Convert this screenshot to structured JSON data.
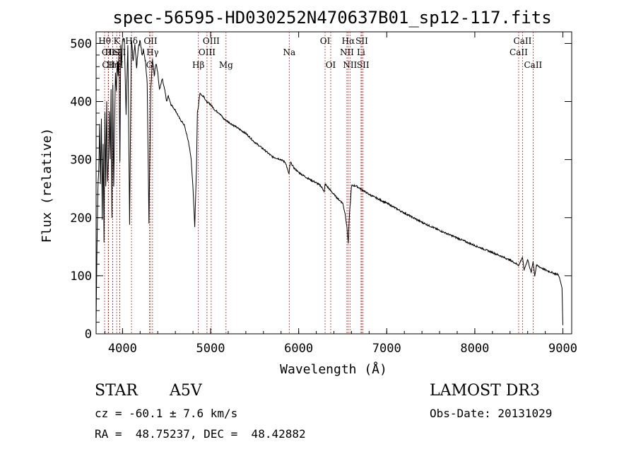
{
  "chart_data": {
    "type": "line",
    "title": "spec-56595-HD030252N470637B01_sp12-117.fits",
    "xlabel": "Wavelength (Å)",
    "ylabel": "Flux (relative)",
    "xlim": [
      3700,
      9100
    ],
    "ylim": [
      0,
      520
    ],
    "xticks": [
      4000,
      5000,
      6000,
      7000,
      8000,
      9000
    ],
    "yticks": [
      0,
      100,
      200,
      300,
      400,
      500
    ],
    "series": [
      {
        "name": "spectrum",
        "x": [
          3700,
          3710,
          3720,
          3730,
          3740,
          3750,
          3760,
          3770,
          3780,
          3790,
          3800,
          3810,
          3820,
          3830,
          3840,
          3850,
          3860,
          3870,
          3880,
          3890,
          3900,
          3910,
          3920,
          3930,
          3940,
          3950,
          3960,
          3970,
          3980,
          3990,
          4000,
          4020,
          4040,
          4060,
          4080,
          4100,
          4120,
          4140,
          4160,
          4180,
          4200,
          4220,
          4240,
          4260,
          4280,
          4300,
          4320,
          4340,
          4360,
          4380,
          4400,
          4420,
          4450,
          4480,
          4500,
          4520,
          4550,
          4600,
          4650,
          4700,
          4750,
          4780,
          4800,
          4820,
          4840,
          4850,
          4860,
          4870,
          4880,
          4900,
          4920,
          4950,
          5000,
          5050,
          5100,
          5150,
          5200,
          5300,
          5400,
          5500,
          5600,
          5700,
          5800,
          5850,
          5890,
          5900,
          5910,
          5950,
          6000,
          6100,
          6200,
          6250,
          6280,
          6290,
          6300,
          6400,
          6450,
          6500,
          6530,
          6550,
          6563,
          6575,
          6600,
          6650,
          6700,
          6750,
          6800,
          7000,
          7200,
          7400,
          7600,
          7800,
          8000,
          8200,
          8400,
          8500,
          8540,
          8560,
          8600,
          8640,
          8662,
          8680,
          8700,
          8800,
          8900,
          8950,
          8990,
          9000
        ],
        "values": [
          20,
          150,
          250,
          280,
          360,
          260,
          370,
          200,
          330,
          160,
          380,
          250,
          400,
          260,
          300,
          380,
          300,
          420,
          200,
          430,
          250,
          360,
          450,
          420,
          470,
          440,
          480,
          300,
          500,
          460,
          510,
          505,
          380,
          500,
          190,
          510,
          470,
          500,
          460,
          495,
          505,
          480,
          490,
          470,
          430,
          190,
          420,
          470,
          445,
          465,
          450,
          420,
          440,
          420,
          400,
          410,
          395,
          385,
          370,
          360,
          330,
          300,
          250,
          185,
          290,
          380,
          390,
          405,
          415,
          410,
          410,
          400,
          395,
          385,
          380,
          370,
          365,
          355,
          345,
          330,
          318,
          305,
          300,
          295,
          275,
          290,
          295,
          285,
          278,
          268,
          260,
          255,
          248,
          244,
          258,
          240,
          232,
          225,
          205,
          180,
          155,
          200,
          255,
          255,
          250,
          245,
          240,
          225,
          208,
          192,
          178,
          165,
          152,
          140,
          127,
          118,
          132,
          110,
          128,
          105,
          125,
          100,
          118,
          110,
          104,
          102,
          80,
          15
        ]
      }
    ],
    "lines": [
      {
        "label": "Hθ",
        "x": 3797,
        "row": 1
      },
      {
        "label": "CII",
        "x": 3838,
        "row": 2
      },
      {
        "label": "CII",
        "x": 3842,
        "row": 3
      },
      {
        "label": "Hη",
        "x": 3889,
        "row": 3
      },
      {
        "label": "HeI",
        "x": 3889,
        "row": 2
      },
      {
        "label": "K",
        "x": 3934,
        "row": 1
      },
      {
        "label": "SII",
        "x": 3969,
        "row": 2
      },
      {
        "label": "H",
        "x": 3969,
        "row": 3
      },
      {
        "label": "Hδ",
        "x": 4102,
        "row": 1
      },
      {
        "label": "OII",
        "x": 4318,
        "row": 1
      },
      {
        "label": "Hγ",
        "x": 4341,
        "row": 2
      },
      {
        "label": "G",
        "x": 4305,
        "row": 3
      },
      {
        "label": "Hβ",
        "x": 4861,
        "row": 3
      },
      {
        "label": "OIII",
        "x": 5007,
        "row": 1
      },
      {
        "label": "OIII",
        "x": 4959,
        "row": 2
      },
      {
        "label": "Mg",
        "x": 5175,
        "row": 3
      },
      {
        "label": "Na",
        "x": 5893,
        "row": 2
      },
      {
        "label": "OI",
        "x": 6300,
        "row": 1
      },
      {
        "label": "OI",
        "x": 6364,
        "row": 3
      },
      {
        "label": "Hα",
        "x": 6563,
        "row": 1
      },
      {
        "label": "NII",
        "x": 6548,
        "row": 2
      },
      {
        "label": "NII",
        "x": 6583,
        "row": 3
      },
      {
        "label": "Li",
        "x": 6708,
        "row": 2
      },
      {
        "label": "SII",
        "x": 6717,
        "row": 1
      },
      {
        "label": "SII",
        "x": 6731,
        "row": 3
      },
      {
        "label": "CaII",
        "x": 8542,
        "row": 1
      },
      {
        "label": "CaII",
        "x": 8498,
        "row": 2
      },
      {
        "label": "CaII",
        "x": 8662,
        "row": 3
      }
    ]
  },
  "info": {
    "object_class": "STAR",
    "subclass": "A5V",
    "survey": "LAMOST DR3",
    "cz": "cz = -60.1 ± 7.6 km/s",
    "obs_date": "Obs-Date: 20131029",
    "coords": "RA =  48.75237, DEC =  48.42882"
  }
}
